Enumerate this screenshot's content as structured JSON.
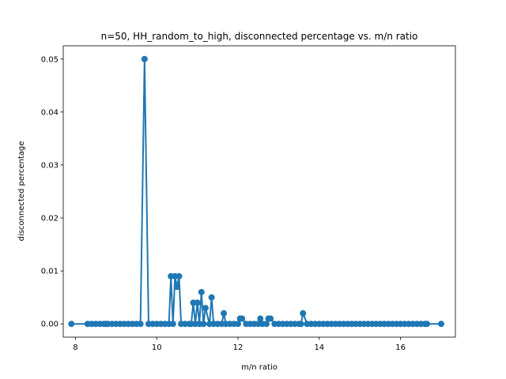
{
  "chart_data": {
    "type": "line",
    "title": "n=50, HH_random_to_high, disconnected percentage vs. m/n ratio",
    "xlabel": "m/n ratio",
    "ylabel": "disconnected percentage",
    "xlim": [
      7.7,
      17.35
    ],
    "ylim": [
      -0.0025,
      0.0525
    ],
    "xticks": [
      8,
      10,
      12,
      14,
      16
    ],
    "xtick_labels": [
      "8",
      "10",
      "12",
      "14",
      "16"
    ],
    "yticks": [
      0.0,
      0.01,
      0.02,
      0.03,
      0.04,
      0.05
    ],
    "ytick_labels": [
      "0.00",
      "0.01",
      "0.02",
      "0.03",
      "0.04",
      "0.05"
    ],
    "grid": false,
    "legend": false,
    "color": "#1f77b4",
    "series": [
      {
        "marker": "circle",
        "x": [
          7.9,
          8.3,
          8.4,
          8.5,
          8.6,
          8.7,
          8.75,
          8.8,
          8.9,
          9.0,
          9.1,
          9.2,
          9.3,
          9.4,
          9.5,
          9.6,
          9.7,
          9.8,
          9.9,
          10.0,
          10.1,
          10.2,
          10.3,
          10.35,
          10.4,
          10.45,
          10.5,
          10.55,
          10.6,
          10.7,
          10.8,
          10.85,
          10.9,
          10.95,
          11.0,
          11.05,
          11.1,
          11.15,
          11.2,
          11.3,
          11.35,
          11.4,
          11.5,
          11.6,
          11.65,
          11.7,
          11.8,
          11.9,
          12.0,
          12.05,
          12.1,
          12.2,
          12.3,
          12.4,
          12.5,
          12.55,
          12.6,
          12.7,
          12.75,
          12.8,
          12.9,
          13.0,
          13.1,
          13.2,
          13.3,
          13.4,
          13.5,
          13.55,
          13.6,
          13.7,
          13.8,
          13.9,
          14.0,
          14.1,
          14.2,
          14.3,
          14.4,
          14.5,
          14.6,
          14.7,
          14.8,
          14.9,
          15.0,
          15.1,
          15.2,
          15.3,
          15.4,
          15.5,
          15.6,
          15.7,
          15.8,
          15.9,
          16.0,
          16.1,
          16.2,
          16.3,
          16.4,
          16.5,
          16.6,
          16.65,
          17.0
        ],
        "y": [
          0.0,
          0.0,
          0.0,
          0.0,
          0.0,
          0.0,
          0.0,
          0.0,
          0.0,
          0.0,
          0.0,
          0.0,
          0.0,
          0.0,
          0.0,
          0.0,
          0.05,
          0.0,
          0.0,
          0.0,
          0.0,
          0.0,
          0.0,
          0.009,
          0.0,
          0.009,
          0.007,
          0.009,
          0.0,
          0.0,
          0.0,
          0.0,
          0.004,
          0.0,
          0.004,
          0.0,
          0.006,
          0.0,
          0.003,
          0.0,
          0.005,
          0.0,
          0.0,
          0.0,
          0.002,
          0.0,
          0.0,
          0.0,
          0.0,
          0.001,
          0.001,
          0.0,
          0.0,
          0.0,
          0.0,
          0.001,
          0.0,
          0.0,
          0.001,
          0.001,
          0.0,
          0.0,
          0.0,
          0.0,
          0.0,
          0.0,
          0.0,
          0.0,
          0.002,
          0.0,
          0.0,
          0.0,
          0.0,
          0.0,
          0.0,
          0.0,
          0.0,
          0.0,
          0.0,
          0.0,
          0.0,
          0.0,
          0.0,
          0.0,
          0.0,
          0.0,
          0.0,
          0.0,
          0.0,
          0.0,
          0.0,
          0.0,
          0.0,
          0.0,
          0.0,
          0.0,
          0.0,
          0.0,
          0.0,
          0.0,
          0.0
        ]
      }
    ]
  }
}
